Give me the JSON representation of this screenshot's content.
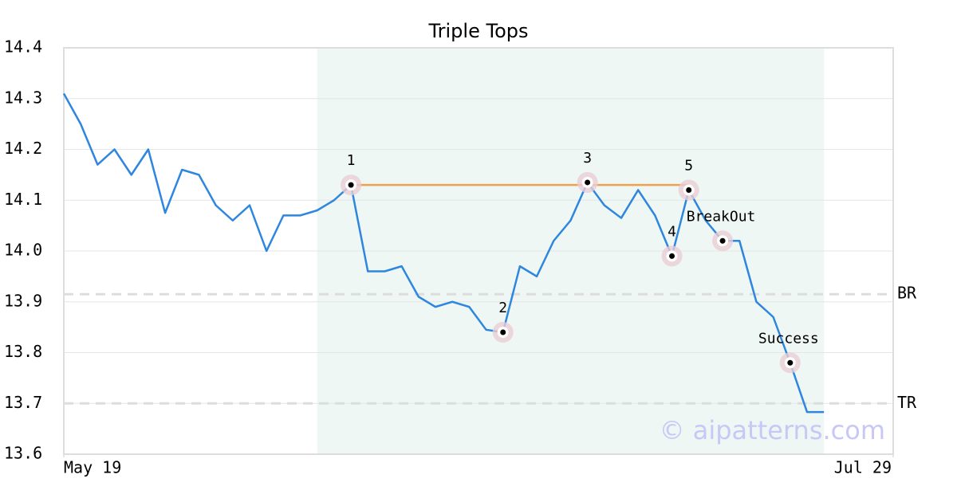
{
  "chart_data": {
    "type": "line",
    "title": "Triple Tops",
    "x": [
      0,
      1,
      2,
      3,
      4,
      5,
      6,
      7,
      8,
      9,
      10,
      11,
      12,
      13,
      14,
      15,
      16,
      17,
      18,
      19,
      20,
      21,
      22,
      23,
      24,
      25,
      26,
      27,
      28,
      29,
      30,
      31,
      32,
      33,
      34,
      35,
      36,
      37,
      38,
      39,
      40,
      41,
      42,
      43,
      44,
      45
    ],
    "series": [
      {
        "name": null,
        "color": "#2e86de",
        "values": [
          14.31,
          14.25,
          14.17,
          14.2,
          14.15,
          14.2,
          14.075,
          14.16,
          14.15,
          14.09,
          14.06,
          14.09,
          14.0,
          14.07,
          14.07,
          14.08,
          14.1,
          14.13,
          13.96,
          13.96,
          13.97,
          13.91,
          13.89,
          13.9,
          13.89,
          13.845,
          13.84,
          13.97,
          13.95,
          14.02,
          14.06,
          14.135,
          14.09,
          14.065,
          14.12,
          14.07,
          13.99,
          14.12,
          14.06,
          14.02,
          14.02,
          13.9,
          13.87,
          13.78,
          13.683,
          13.683
        ]
      }
    ],
    "xlim": [
      0,
      49.1
    ],
    "xticks": [
      {
        "value": 0,
        "label": "May 19"
      },
      {
        "value": 49.1,
        "label": "Jul 29"
      }
    ],
    "ylim": [
      13.6,
      14.4
    ],
    "yticks": [
      13.6,
      13.7,
      13.8,
      13.9,
      {
        "value": 14.0,
        "label": "14.0"
      },
      14.1,
      14.2,
      14.3,
      14.4
    ],
    "grid": true,
    "highlight_range": [
      15,
      45
    ],
    "pattern_line": {
      "x": [
        17,
        37
      ],
      "y": 14.13,
      "color": "#f0a050"
    },
    "levels": [
      {
        "label": "BR",
        "value": 13.915
      },
      {
        "label": "TR",
        "value": 13.7
      }
    ],
    "annotations": [
      {
        "label": "1",
        "x": 17,
        "y": 14.13
      },
      {
        "label": "2",
        "x": 26,
        "y": 13.84
      },
      {
        "label": "3",
        "x": 31,
        "y": 14.135
      },
      {
        "label": "4",
        "x": 36,
        "y": 13.99
      },
      {
        "label": "5",
        "x": 37,
        "y": 14.12
      },
      {
        "label": "BreakOut",
        "x": 39,
        "y": 14.02
      },
      {
        "label": "Success",
        "x": 43,
        "y": 13.78
      }
    ],
    "watermark": "© aipatterns.com"
  }
}
